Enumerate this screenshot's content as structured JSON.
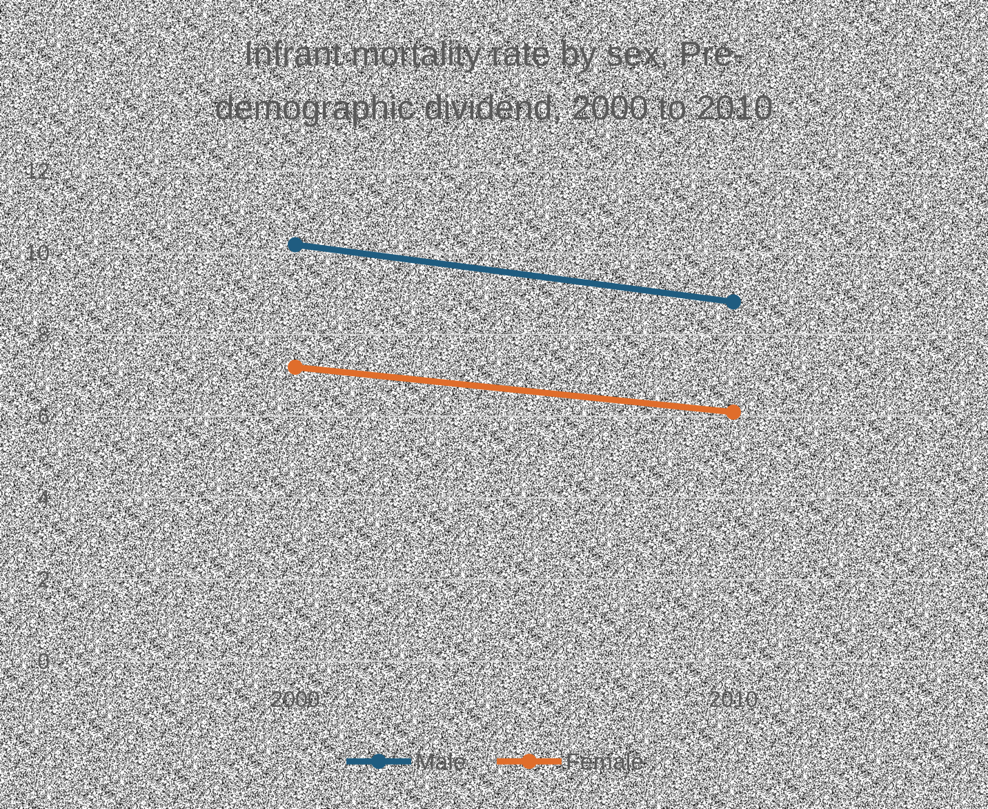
{
  "chart_data": {
    "type": "line",
    "title_lines": [
      "Infrant mortality rate by sex, Pre-",
      "demographic dividend, 2000 to 2010"
    ],
    "categories": [
      "2000",
      "2010"
    ],
    "series": [
      {
        "name": "Male",
        "values": [
          10.2,
          8.8
        ],
        "color": "#1f5c80"
      },
      {
        "name": "Female",
        "values": [
          7.2,
          6.1
        ],
        "color": "#e06d2b"
      }
    ],
    "ylim": [
      0,
      12
    ],
    "yticks": [
      "0",
      "2",
      "4",
      "6",
      "8",
      "10",
      "12"
    ],
    "grid": true,
    "legend_position": "bottom"
  }
}
